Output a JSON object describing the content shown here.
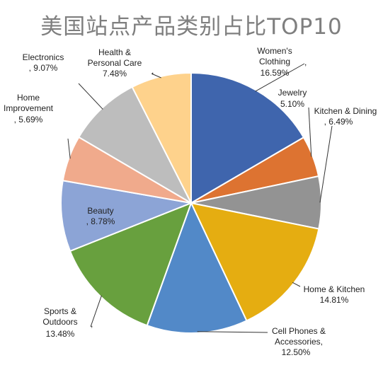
{
  "chart_data": {
    "type": "pie",
    "title": "美国站点产品类别占比TOP10",
    "start_angle_deg": 0,
    "direction": "clockwise",
    "slices": [
      {
        "label": "Women's Clothing",
        "value": 16.59,
        "value_label": "16.59%",
        "color": "#3f65ad"
      },
      {
        "label": "Jewelry",
        "value": 5.1,
        "value_label": "5.10%",
        "color": "#dd7331"
      },
      {
        "label": "Kitchen & Dining",
        "value": 6.49,
        "value_label": "6.49%",
        "color": "#939393"
      },
      {
        "label": "Home & Kitchen",
        "value": 14.81,
        "value_label": "14.81%",
        "color": "#e5ad11"
      },
      {
        "label": "Cell Phones & Accessories",
        "value": 12.5,
        "value_label": "12.50%",
        "color": "#5289c8"
      },
      {
        "label": "Sports & Outdoors",
        "value": 13.48,
        "value_label": "13.48%",
        "color": "#68a03e"
      },
      {
        "label": "Beauty",
        "value": 8.78,
        "value_label": "8.78%",
        "color": "#8ca4d6"
      },
      {
        "label": "Home Improvement",
        "value": 5.69,
        "value_label": "5.69%",
        "color": "#f0aa8c"
      },
      {
        "label": "Electronics",
        "value": 9.07,
        "value_label": "9.07%",
        "color": "#bdbdbd"
      },
      {
        "label": "Health & Personal Care",
        "value": 7.48,
        "value_label": "7.48%",
        "color": "#fed28c"
      }
    ]
  }
}
